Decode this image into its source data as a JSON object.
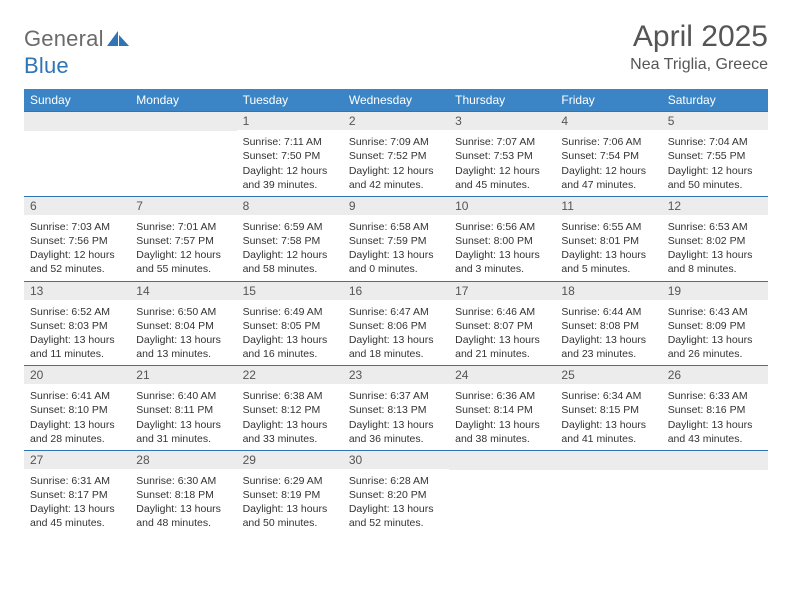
{
  "logo": {
    "part1": "General",
    "part2": "Blue",
    "shape_fill": "#2f74b5"
  },
  "title": "April 2025",
  "location": "Nea Triglia, Greece",
  "header_bg": "#3b85c6",
  "border_color": "#2f74b5",
  "daybar_bg": "#ececec",
  "weekdays": [
    "Sunday",
    "Monday",
    "Tuesday",
    "Wednesday",
    "Thursday",
    "Friday",
    "Saturday"
  ],
  "weeks": [
    [
      null,
      null,
      {
        "n": "1",
        "sr": "7:11 AM",
        "ss": "7:50 PM",
        "dl": "12 hours and 39 minutes."
      },
      {
        "n": "2",
        "sr": "7:09 AM",
        "ss": "7:52 PM",
        "dl": "12 hours and 42 minutes."
      },
      {
        "n": "3",
        "sr": "7:07 AM",
        "ss": "7:53 PM",
        "dl": "12 hours and 45 minutes."
      },
      {
        "n": "4",
        "sr": "7:06 AM",
        "ss": "7:54 PM",
        "dl": "12 hours and 47 minutes."
      },
      {
        "n": "5",
        "sr": "7:04 AM",
        "ss": "7:55 PM",
        "dl": "12 hours and 50 minutes."
      }
    ],
    [
      {
        "n": "6",
        "sr": "7:03 AM",
        "ss": "7:56 PM",
        "dl": "12 hours and 52 minutes."
      },
      {
        "n": "7",
        "sr": "7:01 AM",
        "ss": "7:57 PM",
        "dl": "12 hours and 55 minutes."
      },
      {
        "n": "8",
        "sr": "6:59 AM",
        "ss": "7:58 PM",
        "dl": "12 hours and 58 minutes."
      },
      {
        "n": "9",
        "sr": "6:58 AM",
        "ss": "7:59 PM",
        "dl": "13 hours and 0 minutes."
      },
      {
        "n": "10",
        "sr": "6:56 AM",
        "ss": "8:00 PM",
        "dl": "13 hours and 3 minutes."
      },
      {
        "n": "11",
        "sr": "6:55 AM",
        "ss": "8:01 PM",
        "dl": "13 hours and 5 minutes."
      },
      {
        "n": "12",
        "sr": "6:53 AM",
        "ss": "8:02 PM",
        "dl": "13 hours and 8 minutes."
      }
    ],
    [
      {
        "n": "13",
        "sr": "6:52 AM",
        "ss": "8:03 PM",
        "dl": "13 hours and 11 minutes."
      },
      {
        "n": "14",
        "sr": "6:50 AM",
        "ss": "8:04 PM",
        "dl": "13 hours and 13 minutes."
      },
      {
        "n": "15",
        "sr": "6:49 AM",
        "ss": "8:05 PM",
        "dl": "13 hours and 16 minutes."
      },
      {
        "n": "16",
        "sr": "6:47 AM",
        "ss": "8:06 PM",
        "dl": "13 hours and 18 minutes."
      },
      {
        "n": "17",
        "sr": "6:46 AM",
        "ss": "8:07 PM",
        "dl": "13 hours and 21 minutes."
      },
      {
        "n": "18",
        "sr": "6:44 AM",
        "ss": "8:08 PM",
        "dl": "13 hours and 23 minutes."
      },
      {
        "n": "19",
        "sr": "6:43 AM",
        "ss": "8:09 PM",
        "dl": "13 hours and 26 minutes."
      }
    ],
    [
      {
        "n": "20",
        "sr": "6:41 AM",
        "ss": "8:10 PM",
        "dl": "13 hours and 28 minutes."
      },
      {
        "n": "21",
        "sr": "6:40 AM",
        "ss": "8:11 PM",
        "dl": "13 hours and 31 minutes."
      },
      {
        "n": "22",
        "sr": "6:38 AM",
        "ss": "8:12 PM",
        "dl": "13 hours and 33 minutes."
      },
      {
        "n": "23",
        "sr": "6:37 AM",
        "ss": "8:13 PM",
        "dl": "13 hours and 36 minutes."
      },
      {
        "n": "24",
        "sr": "6:36 AM",
        "ss": "8:14 PM",
        "dl": "13 hours and 38 minutes."
      },
      {
        "n": "25",
        "sr": "6:34 AM",
        "ss": "8:15 PM",
        "dl": "13 hours and 41 minutes."
      },
      {
        "n": "26",
        "sr": "6:33 AM",
        "ss": "8:16 PM",
        "dl": "13 hours and 43 minutes."
      }
    ],
    [
      {
        "n": "27",
        "sr": "6:31 AM",
        "ss": "8:17 PM",
        "dl": "13 hours and 45 minutes."
      },
      {
        "n": "28",
        "sr": "6:30 AM",
        "ss": "8:18 PM",
        "dl": "13 hours and 48 minutes."
      },
      {
        "n": "29",
        "sr": "6:29 AM",
        "ss": "8:19 PM",
        "dl": "13 hours and 50 minutes."
      },
      {
        "n": "30",
        "sr": "6:28 AM",
        "ss": "8:20 PM",
        "dl": "13 hours and 52 minutes."
      },
      null,
      null,
      null
    ]
  ],
  "labels": {
    "sunrise": "Sunrise:",
    "sunset": "Sunset:",
    "daylight": "Daylight:"
  }
}
